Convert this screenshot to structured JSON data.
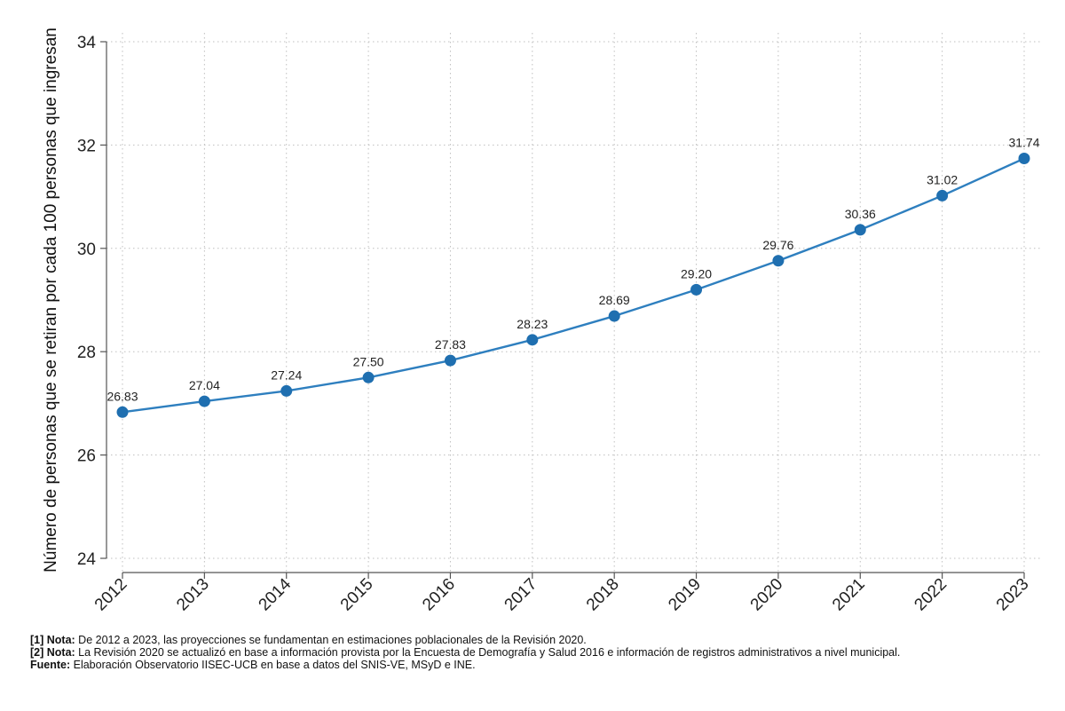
{
  "chart_data": {
    "type": "line",
    "ylabel": "Número de personas que se retiran por cada 100 personas que ingresan",
    "xlabel": "",
    "x": [
      "2012",
      "2013",
      "2014",
      "2015",
      "2016",
      "2017",
      "2018",
      "2019",
      "2020",
      "2021",
      "2022",
      "2023"
    ],
    "series": [
      {
        "values": [
          26.83,
          27.04,
          27.24,
          27.5,
          27.83,
          28.23,
          28.69,
          29.2,
          29.76,
          30.36,
          31.02,
          31.74
        ]
      }
    ],
    "data_labels": [
      "26.83",
      "27.04",
      "27.24",
      "27.50",
      "27.83",
      "28.23",
      "28.69",
      "29.20",
      "29.76",
      "30.36",
      "31.02",
      "31.74"
    ],
    "ylim": [
      24,
      34
    ],
    "yticks": [
      "24",
      "26",
      "28",
      "30",
      "32",
      "34"
    ],
    "grid": "dotted",
    "legend": "none",
    "colors": {
      "line": "#2e7fbf",
      "marker": "#1f6fb0",
      "axis": "#555555",
      "grid": "#bfbfbf"
    }
  },
  "notes": [
    {
      "label": "[1] Nota:",
      "text": " De 2012 a 2023, las proyecciones se fundamentan en estimaciones poblacionales de la Revisión 2020."
    },
    {
      "label": "[2] Nota:",
      "text": " La Revisión 2020 se actualizó en base a información provista por la Encuesta de Demografía y Salud 2016 e información de registros administrativos a nivel municipal."
    },
    {
      "label": "Fuente:",
      "text": " Elaboración Observatorio IISEC-UCB en base a datos del SNIS-VE, MSyD e INE."
    }
  ]
}
